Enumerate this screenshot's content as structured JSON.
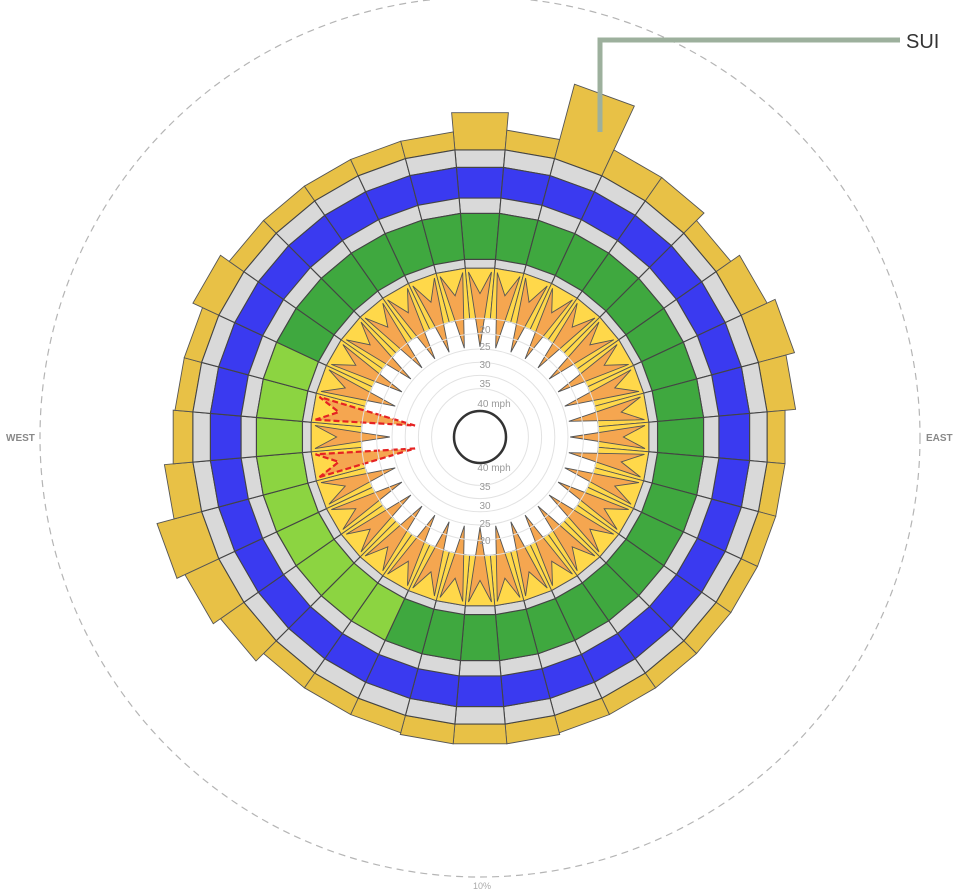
{
  "colors": {
    "outer_band": "#e8c146",
    "gray_band": "#d9d9d9",
    "blue_band": "#3a3af0",
    "green_band": "#3fa83f",
    "light_green_band": "#8cd441",
    "inner_yellow": "#ffd84a",
    "inner_orange": "#f5a650",
    "highlight": "#e52222",
    "callout_line": "#9db09d"
  },
  "labels": {
    "west": "WEST",
    "east": "EAST",
    "percent": "10%",
    "callout": "SUI"
  },
  "mph_labels_top": [
    "20",
    "25",
    "30",
    "35",
    "40 mph"
  ],
  "mph_labels_bottom": [
    "40 mph",
    "35",
    "30",
    "25",
    "20"
  ],
  "chart_data": {
    "type": "radial",
    "sectors": 36,
    "sector_width_deg": 10,
    "outer_band_extent": [
      0.62,
      0.58,
      0.71,
      0.6,
      0.6,
      0.57,
      0.6,
      0.62,
      0.6,
      0.5,
      0.54,
      0.5,
      0.46,
      0.45,
      0.48,
      0.45,
      0.53,
      0.58,
      0.58,
      0.58,
      0.54,
      0.53,
      0.56,
      0.6,
      0.62,
      0.64,
      0.6,
      0.58,
      0.52,
      0.49,
      0.6,
      0.55,
      0.56,
      0.48,
      0.47,
      0.53
    ],
    "light_green_sectors": [
      21,
      22,
      23,
      24,
      25,
      26,
      27,
      28,
      29
    ],
    "highlight_sectors": [
      26,
      28
    ]
  }
}
